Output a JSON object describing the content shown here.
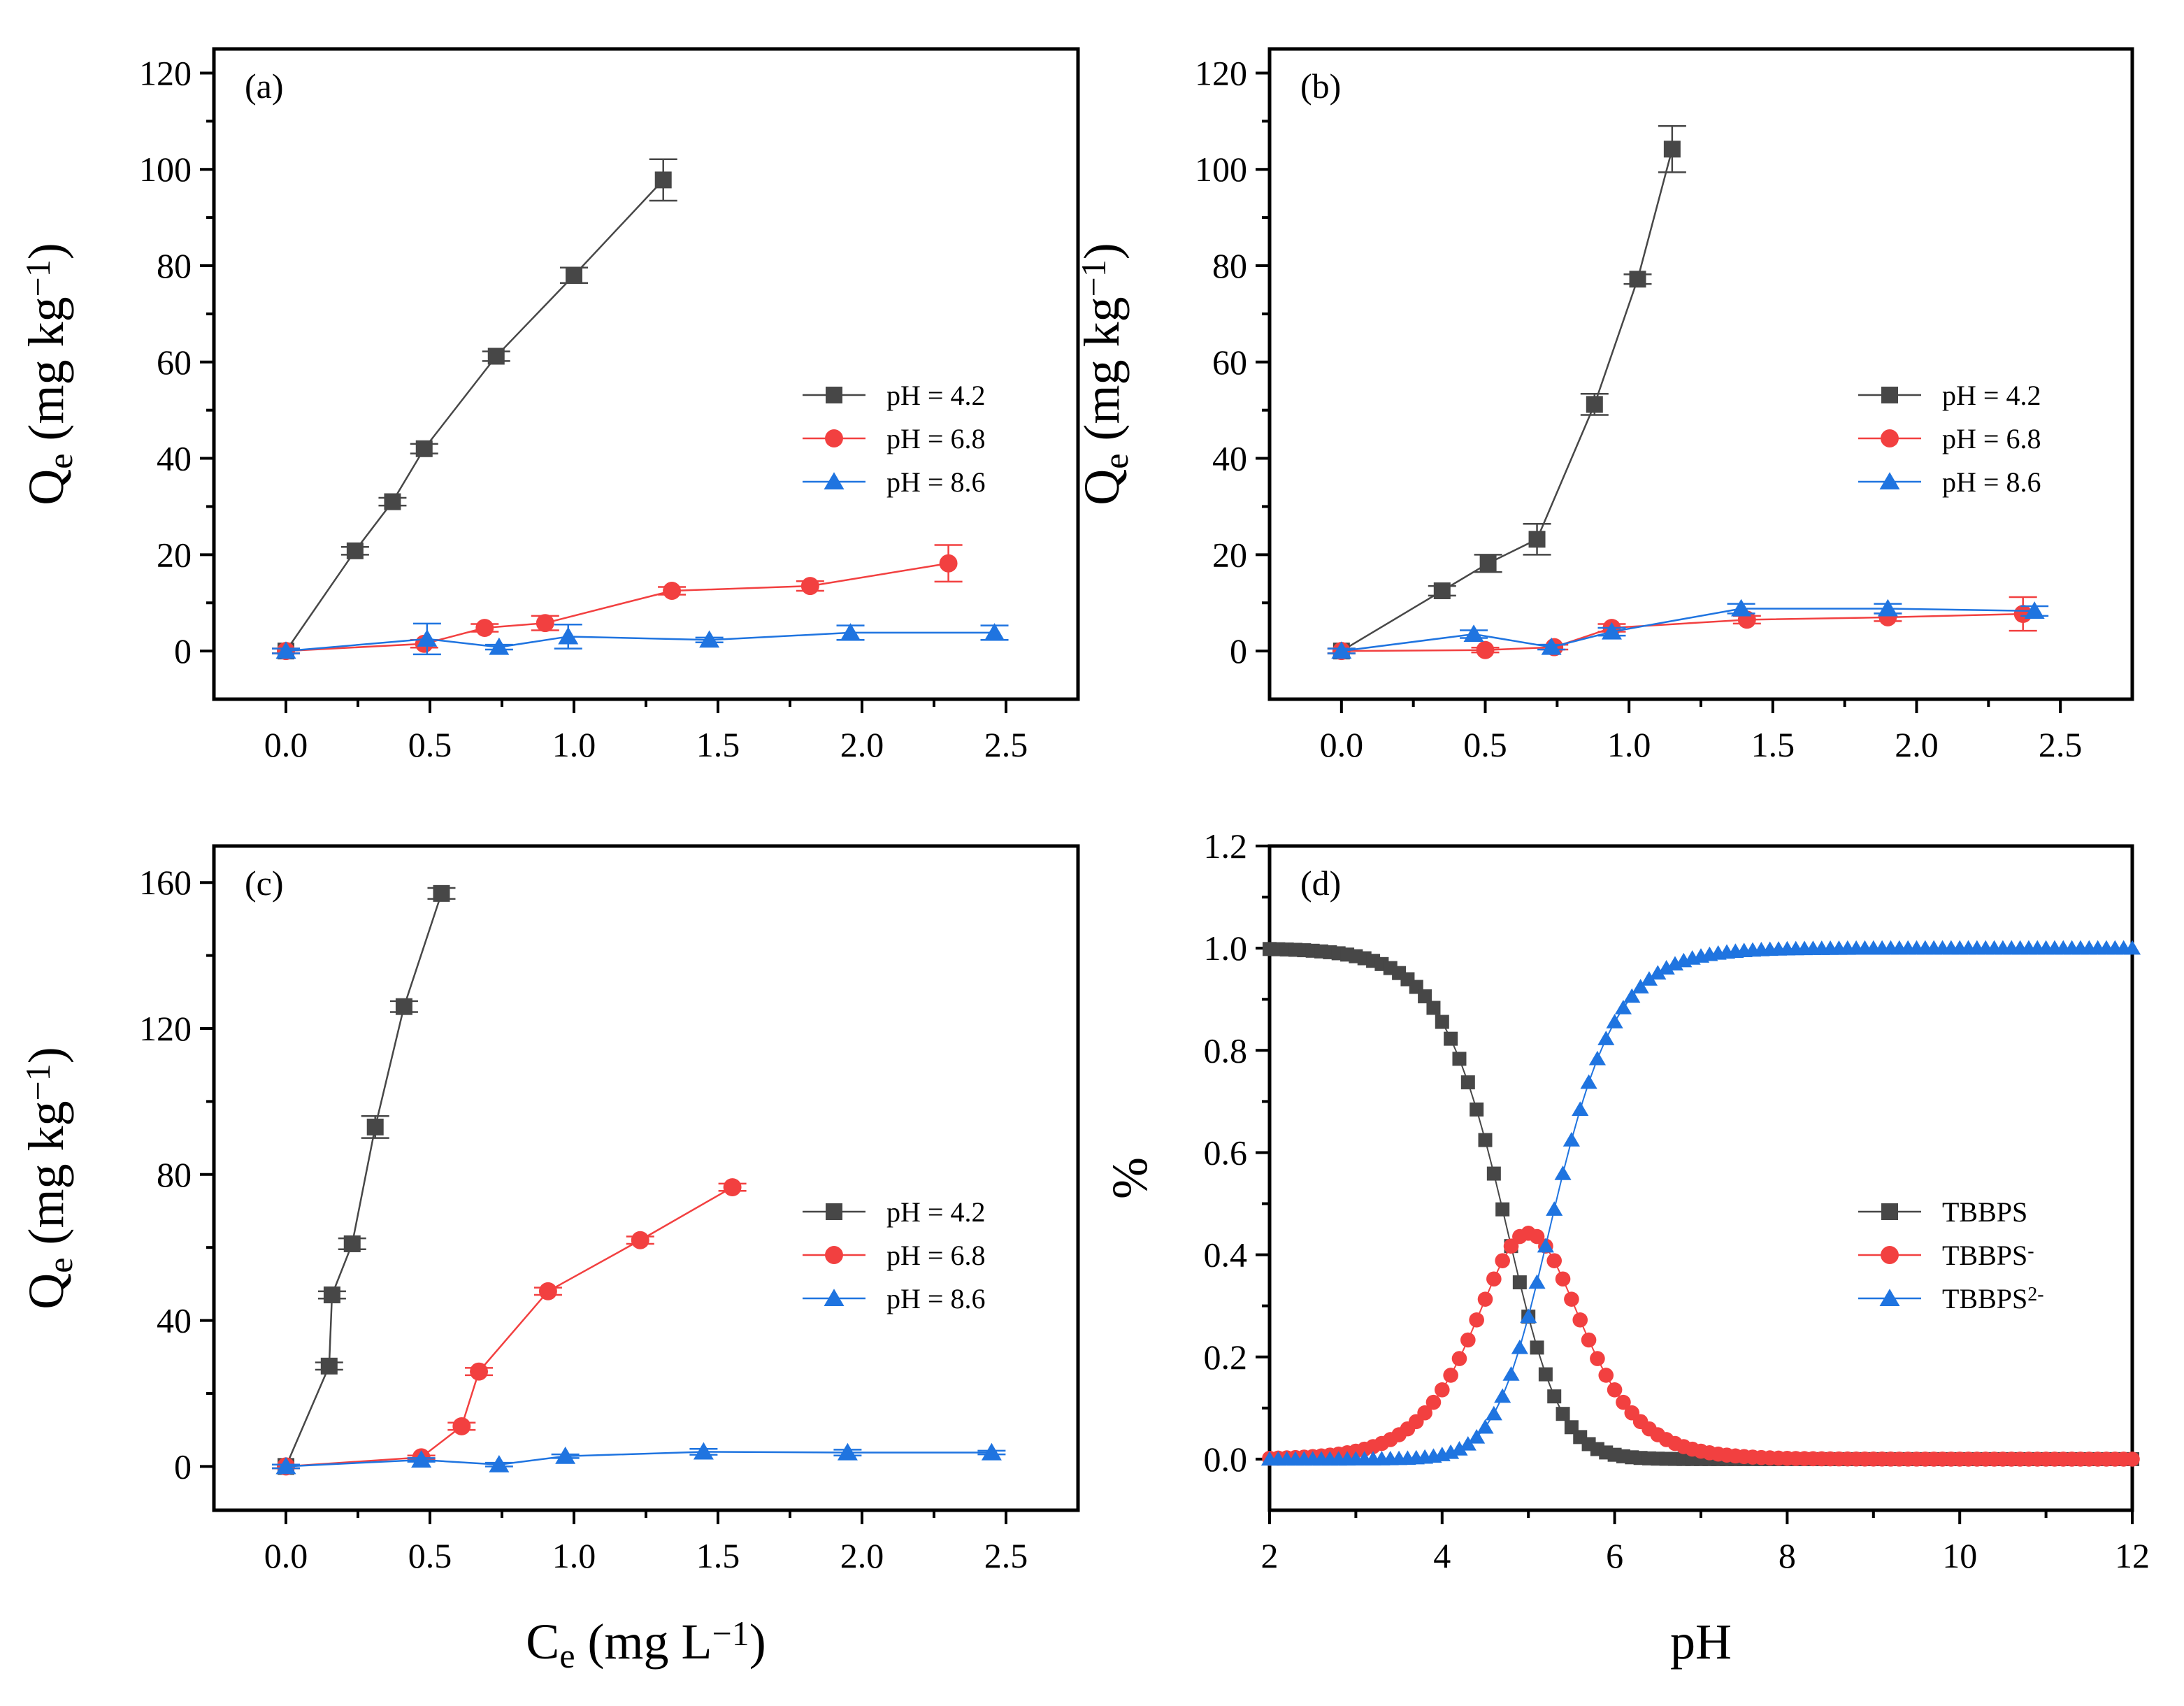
{
  "figure": {
    "x_axis_title": {
      "main": "C",
      "sub": "e",
      "unit": " (mg L",
      "sup": "−1",
      "close": ")"
    },
    "ph_axis_title": "pH"
  },
  "colors": {
    "black": "#474747",
    "red": "#f24040",
    "blue": "#1f74e0"
  },
  "chart_data": [
    {
      "id": "a",
      "type": "line",
      "panel_label": "(a)",
      "ylabel": {
        "main": "Q",
        "sub": "e",
        "unit": " (mg kg",
        "sup": "−1",
        "close": ")"
      },
      "xlim": [
        -0.25,
        2.75
      ],
      "ylim": [
        -10,
        125
      ],
      "xticks": [
        0.0,
        0.5,
        1.0,
        1.5,
        2.0,
        2.5
      ],
      "xtick_labels": [
        "0.0",
        "0.5",
        "1.0",
        "1.5",
        "2.0",
        "2.5"
      ],
      "yticks": [
        0,
        20,
        40,
        60,
        80,
        100,
        120
      ],
      "ytick_labels": [
        "0",
        "20",
        "40",
        "60",
        "80",
        "100",
        "120"
      ],
      "legend": {
        "position": "right-middle"
      },
      "series": [
        {
          "name": "pH = 4.2",
          "color": "#474747",
          "marker": "square",
          "x": [
            0.0,
            0.24,
            0.37,
            0.48,
            0.73,
            1.0,
            1.31
          ],
          "y": [
            0.0,
            20.8,
            31.0,
            42.0,
            61.2,
            78.0,
            97.8
          ],
          "err": [
            0.5,
            0.8,
            0.8,
            1.0,
            1.0,
            1.6,
            4.3
          ]
        },
        {
          "name": "pH = 6.8",
          "color": "#f24040",
          "marker": "circle",
          "x": [
            0.0,
            0.48,
            0.69,
            0.9,
            1.34,
            1.82,
            2.3
          ],
          "y": [
            0.0,
            1.5,
            4.8,
            5.8,
            12.5,
            13.5,
            18.2
          ],
          "err": [
            0.5,
            0.8,
            0.8,
            1.5,
            0.8,
            1.0,
            3.8
          ]
        },
        {
          "name": "pH = 8.6",
          "color": "#1f74e0",
          "marker": "triangle",
          "x": [
            0.0,
            0.49,
            0.74,
            0.98,
            1.47,
            1.96,
            2.46
          ],
          "y": [
            0.0,
            2.5,
            0.8,
            3.0,
            2.3,
            3.8,
            3.8
          ],
          "err": [
            0.5,
            3.2,
            0.5,
            2.5,
            0.5,
            1.5,
            1.5
          ]
        }
      ]
    },
    {
      "id": "b",
      "type": "line",
      "panel_label": "(b)",
      "ylabel": {
        "main": "Q",
        "sub": "e",
        "unit": " (mg kg",
        "sup": "−1",
        "close": ")"
      },
      "xlim": [
        -0.25,
        2.75
      ],
      "ylim": [
        -10,
        125
      ],
      "xticks": [
        0.0,
        0.5,
        1.0,
        1.5,
        2.0,
        2.5
      ],
      "xtick_labels": [
        "0.0",
        "0.5",
        "1.0",
        "1.5",
        "2.0",
        "2.5"
      ],
      "yticks": [
        0,
        20,
        40,
        60,
        80,
        100,
        120
      ],
      "ytick_labels": [
        "0",
        "20",
        "40",
        "60",
        "80",
        "100",
        "120"
      ],
      "legend": {
        "position": "right-middle"
      },
      "series": [
        {
          "name": "pH = 4.2",
          "color": "#474747",
          "marker": "square",
          "x": [
            0.0,
            0.35,
            0.51,
            0.68,
            0.88,
            1.03,
            1.15
          ],
          "y": [
            0.0,
            12.5,
            18.2,
            23.2,
            51.2,
            77.2,
            104.2
          ],
          "err": [
            0.5,
            1.0,
            1.8,
            3.2,
            2.2,
            1.0,
            4.8
          ]
        },
        {
          "name": "pH = 6.8",
          "color": "#f24040",
          "marker": "circle",
          "x": [
            0.0,
            0.5,
            0.74,
            0.94,
            1.41,
            1.9,
            2.37
          ],
          "y": [
            0.0,
            0.2,
            0.8,
            4.8,
            6.5,
            7.0,
            7.7
          ],
          "err": [
            0.5,
            0.5,
            0.5,
            0.8,
            0.8,
            0.8,
            3.5
          ]
        },
        {
          "name": "pH = 8.6",
          "color": "#1f74e0",
          "marker": "triangle",
          "x": [
            0.0,
            0.46,
            0.73,
            0.94,
            1.39,
            1.9,
            2.41
          ],
          "y": [
            0.0,
            3.5,
            0.8,
            4.0,
            8.8,
            8.8,
            8.3
          ],
          "err": [
            0.5,
            0.8,
            0.5,
            0.8,
            1.0,
            1.0,
            1.0
          ]
        }
      ]
    },
    {
      "id": "c",
      "type": "line",
      "panel_label": "(c)",
      "ylabel": {
        "main": "Q",
        "sub": "e",
        "unit": " (mg kg",
        "sup": "−1",
        "close": ")"
      },
      "xlim": [
        -0.25,
        2.75
      ],
      "ylim": [
        -12,
        170
      ],
      "xticks": [
        0.0,
        0.5,
        1.0,
        1.5,
        2.0,
        2.5
      ],
      "xtick_labels": [
        "0.0",
        "0.5",
        "1.0",
        "1.5",
        "2.0",
        "2.5"
      ],
      "yticks": [
        0,
        40,
        80,
        120,
        160
      ],
      "ytick_labels": [
        "0",
        "40",
        "80",
        "120",
        "160"
      ],
      "legend": {
        "position": "right-middle"
      },
      "series": [
        {
          "name": "pH = 4.2",
          "color": "#474747",
          "marker": "square",
          "x": [
            0.0,
            0.15,
            0.16,
            0.23,
            0.31,
            0.41,
            0.54
          ],
          "y": [
            0.0,
            27.5,
            47.0,
            61.0,
            93.0,
            126.0,
            157.0
          ],
          "err": [
            0.5,
            1.0,
            1.0,
            1.5,
            3.0,
            1.5,
            1.5
          ]
        },
        {
          "name": "pH = 6.8",
          "color": "#f24040",
          "marker": "circle",
          "x": [
            0.0,
            0.47,
            0.61,
            0.67,
            0.91,
            1.23,
            1.55
          ],
          "y": [
            0.0,
            2.5,
            11.0,
            26.0,
            48.0,
            62.0,
            76.5
          ],
          "err": [
            0.5,
            0.5,
            1.0,
            1.0,
            1.0,
            1.0,
            1.0
          ]
        },
        {
          "name": "pH = 8.6",
          "color": "#1f74e0",
          "marker": "triangle",
          "x": [
            0.0,
            0.47,
            0.74,
            0.97,
            1.45,
            1.95,
            2.45
          ],
          "y": [
            0.0,
            1.8,
            0.5,
            2.8,
            4.0,
            3.8,
            3.8
          ],
          "err": [
            0.5,
            0.5,
            0.5,
            0.5,
            0.8,
            0.8,
            0.5
          ]
        }
      ]
    },
    {
      "id": "d",
      "type": "scatter",
      "panel_label": "(d)",
      "ylabel": {
        "main": "%"
      },
      "xlabel": "pH",
      "xlim": [
        2,
        12
      ],
      "ylim": [
        -0.1,
        1.2
      ],
      "xticks": [
        2,
        4,
        6,
        8,
        10,
        12
      ],
      "xtick_labels": [
        "2",
        "4",
        "6",
        "8",
        "10",
        "12"
      ],
      "yticks": [
        0.0,
        0.2,
        0.4,
        0.6,
        0.8,
        1.0,
        1.2
      ],
      "ytick_labels": [
        "0.0",
        "0.2",
        "0.4",
        "0.6",
        "0.8",
        "1.0",
        "1.2"
      ],
      "legend": {
        "position": "right-middle"
      },
      "speciation": {
        "pKa1": 4.8,
        "pKa2": 5.2,
        "pH_start": 2.0,
        "pH_end": 12.0,
        "pH_step": 0.1
      },
      "series": [
        {
          "name": "TBBPS",
          "sup": "",
          "color": "#474747",
          "marker": "square",
          "species": "neutral"
        },
        {
          "name": "TBBPS",
          "sup": "-",
          "color": "#f24040",
          "marker": "circle",
          "species": "mono"
        },
        {
          "name": "TBBPS",
          "sup": "2-",
          "color": "#1f74e0",
          "marker": "triangle",
          "species": "di"
        }
      ]
    }
  ]
}
